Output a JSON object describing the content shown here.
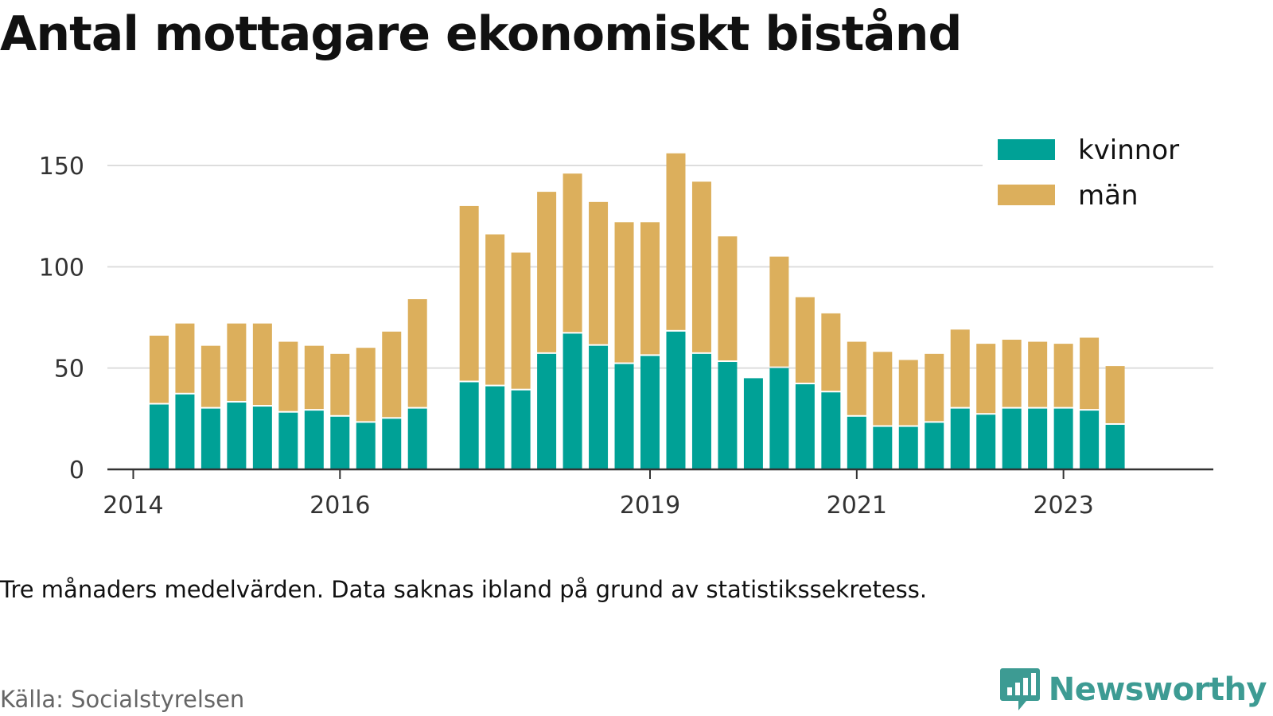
{
  "title": "Antal mottagare ekonomiskt bistånd",
  "note": "Tre månaders medelvärden. Data saknas ibland på grund av statistikssekretess.",
  "source": "Källa: Socialstyrelsen",
  "brand": {
    "name": "Newsworthy",
    "icon": "newsworthy-logo-icon",
    "color": "#3d9b93"
  },
  "colors": {
    "kvinnor": "#00a196",
    "man": "#dcaf5c",
    "grid": "#dddddd",
    "axis": "#333333"
  },
  "chart_data": {
    "type": "bar",
    "stacked": true,
    "title": "Antal mottagare ekonomiskt bistånd",
    "xlabel": "",
    "ylabel": "",
    "ylim": [
      0,
      160
    ],
    "yticks": [
      0,
      50,
      100,
      150
    ],
    "xlim": [
      2013.75,
      2024.45
    ],
    "xticks": [
      2014,
      2016,
      2019,
      2021,
      2023
    ],
    "grid": "horizontal",
    "legend": "top-right",
    "x": [
      2014.25,
      2014.5,
      2014.75,
      2015.0,
      2015.25,
      2015.5,
      2015.75,
      2016.0,
      2016.25,
      2016.5,
      2016.75,
      2017.25,
      2017.5,
      2017.75,
      2018.0,
      2018.25,
      2018.5,
      2018.75,
      2019.0,
      2019.25,
      2019.5,
      2019.75,
      2020.0,
      2020.25,
      2020.5,
      2020.75,
      2021.0,
      2021.25,
      2021.5,
      2021.75,
      2022.0,
      2022.25,
      2022.5,
      2022.75,
      2023.0,
      2023.25,
      2023.5
    ],
    "series": [
      {
        "name": "kvinnor",
        "color": "#00a196",
        "values": [
          32,
          37,
          30,
          33,
          31,
          28,
          29,
          26,
          23,
          25,
          30,
          43,
          41,
          39,
          57,
          67,
          61,
          52,
          56,
          68,
          57,
          53,
          45,
          50,
          42,
          38,
          26,
          21,
          21,
          23,
          30,
          27,
          30,
          30,
          30,
          29,
          22
        ]
      },
      {
        "name": "män",
        "color": "#dcaf5c",
        "values": [
          34,
          35,
          31,
          39,
          41,
          35,
          32,
          31,
          37,
          43,
          54,
          87,
          75,
          68,
          80,
          79,
          71,
          70,
          66,
          88,
          85,
          62,
          0,
          55,
          43,
          39,
          37,
          37,
          33,
          34,
          39,
          35,
          34,
          33,
          32,
          36,
          29
        ]
      }
    ]
  }
}
